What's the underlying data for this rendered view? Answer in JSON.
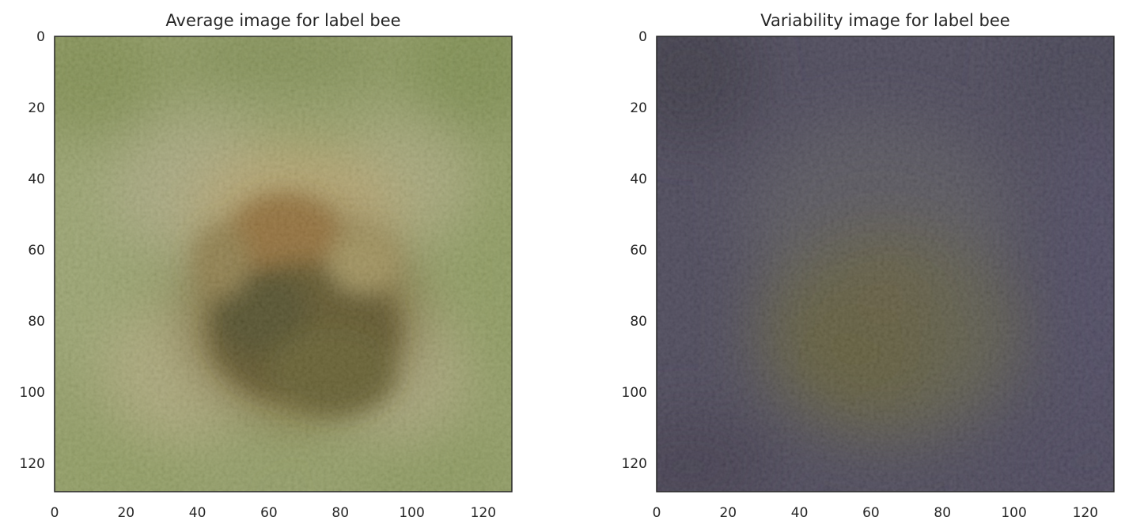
{
  "chart_data": [
    {
      "type": "heatmap",
      "title": "Average image for label bee",
      "xlabel": "",
      "ylabel": "",
      "xlim": [
        0,
        128
      ],
      "ylim": [
        128,
        0
      ],
      "xticks": [
        0,
        20,
        40,
        60,
        80,
        100,
        120
      ],
      "yticks": [
        0,
        20,
        40,
        60,
        80,
        100,
        120
      ],
      "grid": false,
      "content": "RGB image (128 x 128 px): mean of bee images — blurred green/khaki background with a darker brown/olive blob centered",
      "colors": {
        "background": "#8f9a60",
        "center_light": "#b79a5e",
        "center": "#7a5a2a",
        "center_dark": "#4d4820",
        "edge_dark": "#5f6f38"
      }
    },
    {
      "type": "heatmap",
      "title": "Variability image for label bee",
      "xlabel": "",
      "ylabel": "",
      "xlim": [
        0,
        128
      ],
      "ylim": [
        128,
        0
      ],
      "xticks": [
        0,
        20,
        40,
        60,
        80,
        100,
        120
      ],
      "yticks": [
        0,
        20,
        40,
        60,
        80,
        100,
        120
      ],
      "grid": false,
      "content": "RGB image (128 x 128 px): per-pixel standard deviation of bee images — dark purple/slate with a faint olive center",
      "colors": {
        "background": "#433f52",
        "center_light": "#5a5a4e",
        "center": "#56502c",
        "edge_dark": "#352f3e"
      }
    }
  ]
}
